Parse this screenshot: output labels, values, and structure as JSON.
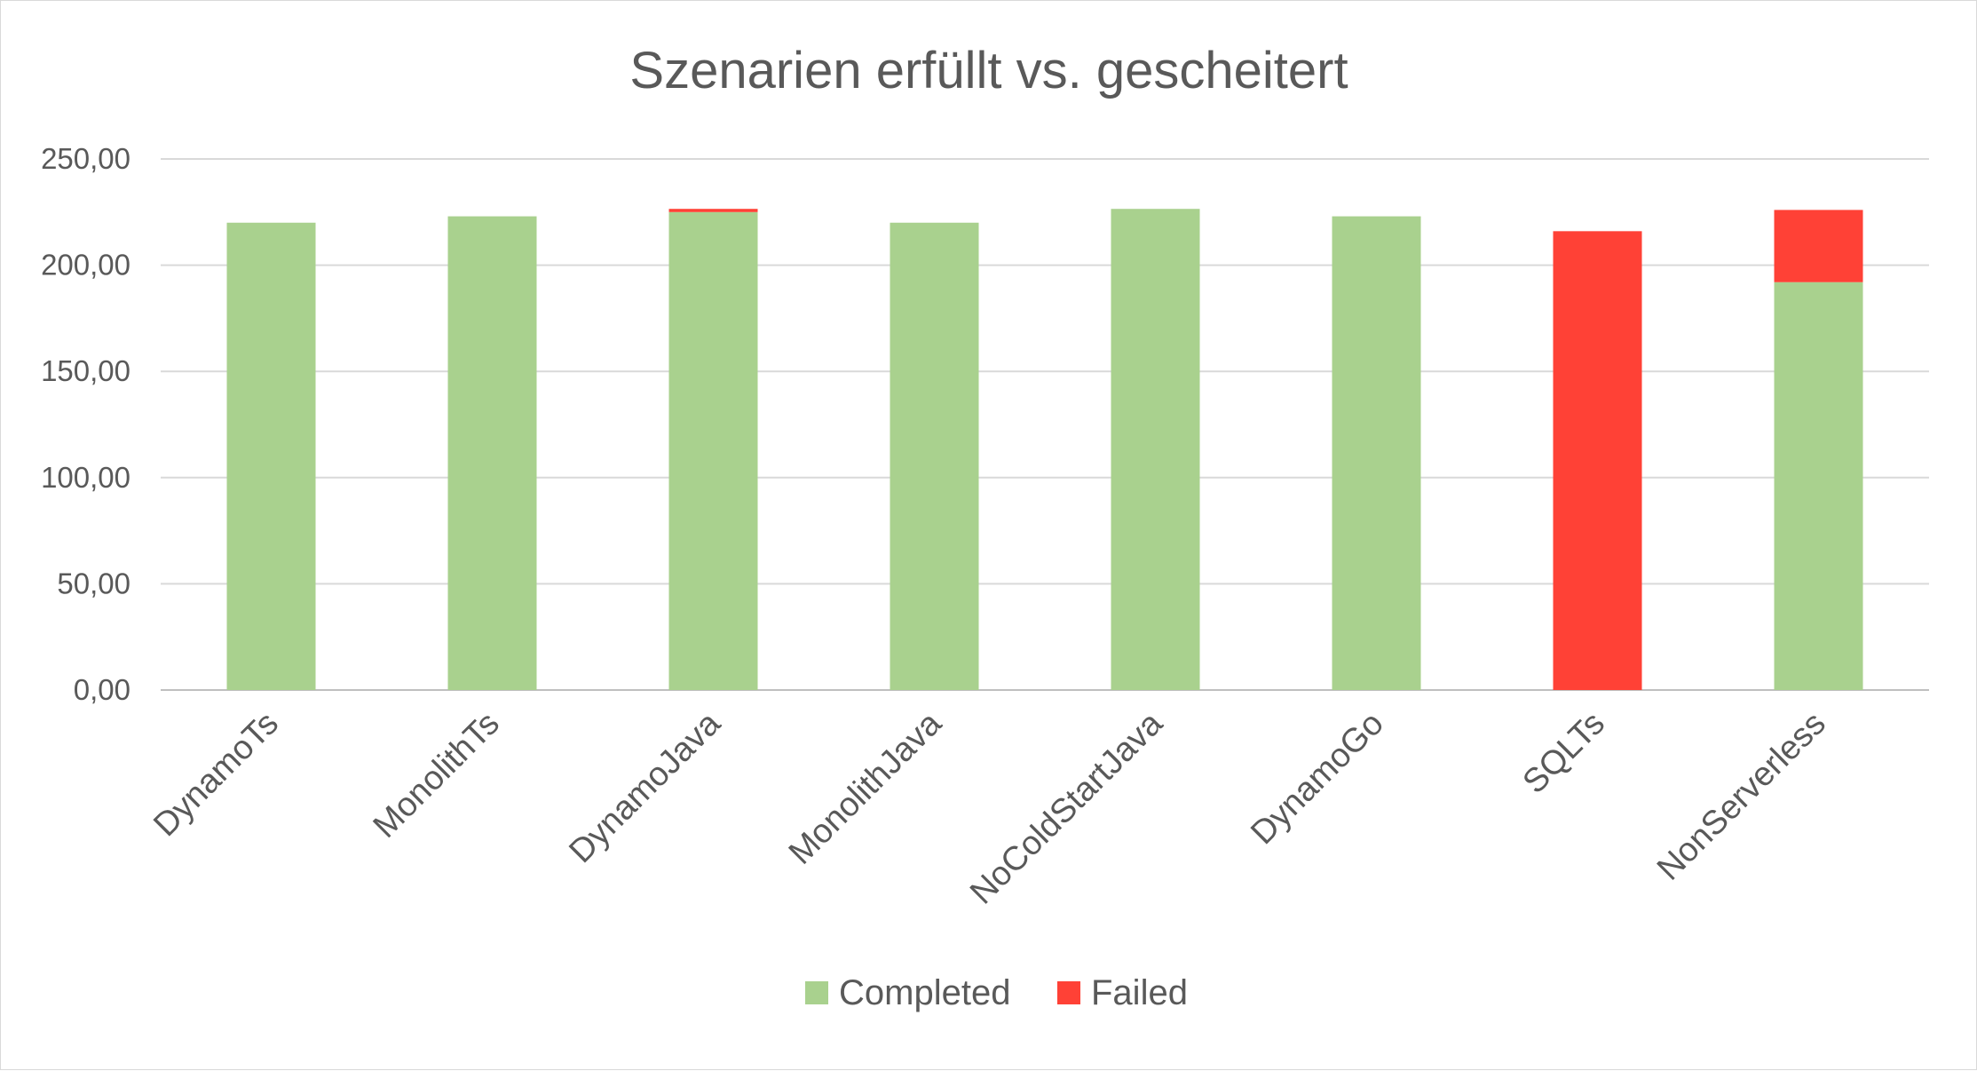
{
  "chart_data": {
    "type": "bar",
    "stacked": true,
    "title": "Szenarien erfüllt vs. gescheitert",
    "xlabel": "",
    "ylabel": "",
    "categories": [
      "DynamoTs",
      "MonolithTs",
      "DynamoJava",
      "MonolithJava",
      "NoColdStartJava",
      "DynamoGo",
      "SQLTs",
      "NonServerless"
    ],
    "series": [
      {
        "name": "Completed",
        "color": "#a9d18e",
        "values": [
          220,
          223,
          225,
          220,
          226.5,
          223,
          0,
          192
        ]
      },
      {
        "name": "Failed",
        "color": "#ff4136",
        "values": [
          0,
          0,
          1.5,
          0,
          0,
          0,
          216,
          34
        ]
      }
    ],
    "ylim": [
      0,
      250
    ],
    "yticks": [
      0,
      50,
      100,
      150,
      200,
      250
    ],
    "ytick_labels": [
      "0,00",
      "50,00",
      "100,00",
      "150,00",
      "200,00",
      "250,00"
    ],
    "grid": true,
    "legend_position": "bottom"
  }
}
